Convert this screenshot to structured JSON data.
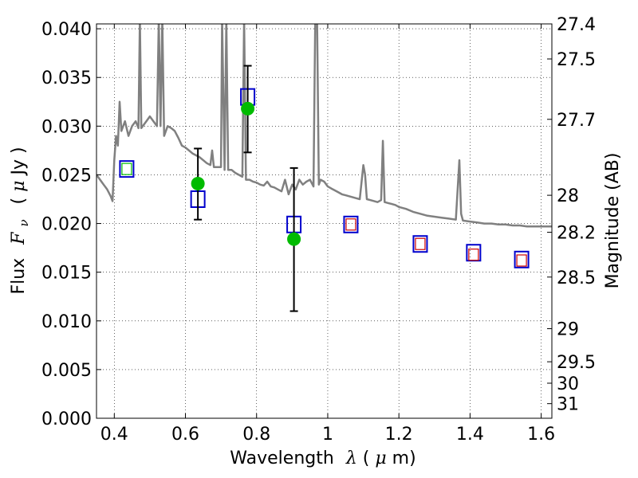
{
  "chart_data": {
    "type": "scatter",
    "xlabel": "Wavelength",
    "xlabel_symbol": "λ",
    "xlabel_unit_open": " (",
    "xlabel_unit_mu": "μ",
    "xlabel_unit_close": "m)",
    "ylabel": "Flux",
    "ylabel_symbol_main": "F",
    "ylabel_symbol_sub": "ν",
    "ylabel_unit_open": "( ",
    "ylabel_unit_mu": "μ",
    "ylabel_unit_close": "Jy )",
    "y2label": "Magnitude (AB)",
    "xlim": [
      0.35,
      1.63
    ],
    "ylim": [
      0.0,
      0.0405
    ],
    "grid": true,
    "x_ticks": [
      0.4,
      0.6,
      0.8,
      1.0,
      1.2,
      1.4,
      1.6
    ],
    "x_tick_labels": [
      "0.4",
      "0.6",
      "0.8",
      "1",
      "1.2",
      "1.4",
      "1.6"
    ],
    "y_ticks": [
      0.0,
      0.005,
      0.01,
      0.015,
      0.02,
      0.025,
      0.03,
      0.035,
      0.04
    ],
    "y_tick_labels": [
      "0.000",
      "0.005",
      "0.010",
      "0.015",
      "0.020",
      "0.025",
      "0.030",
      "0.035",
      "0.040"
    ],
    "mag_ticks": [
      {
        "label": "27.4",
        "flux": 0.0405
      },
      {
        "label": "27.5",
        "flux": 0.0369
      },
      {
        "label": "27.7",
        "flux": 0.0307
      },
      {
        "label": "28",
        "flux": 0.0229
      },
      {
        "label": "28.2",
        "flux": 0.0191
      },
      {
        "label": "28.5",
        "flux": 0.0145
      },
      {
        "label": "29",
        "flux": 0.0092
      },
      {
        "label": "29.5",
        "flux": 0.0058
      },
      {
        "label": "30",
        "flux": 0.0036
      },
      {
        "label": "31",
        "flux": 0.0015
      }
    ],
    "series": [
      {
        "kind": "line",
        "color": "#808080",
        "points": [
          [
            0.35,
            0.025
          ],
          [
            0.36,
            0.0245
          ],
          [
            0.37,
            0.024
          ],
          [
            0.38,
            0.0235
          ],
          [
            0.39,
            0.0228
          ],
          [
            0.395,
            0.0223
          ],
          [
            0.4,
            0.0265
          ],
          [
            0.405,
            0.029
          ],
          [
            0.41,
            0.028
          ],
          [
            0.415,
            0.0325
          ],
          [
            0.42,
            0.0295
          ],
          [
            0.43,
            0.0305
          ],
          [
            0.44,
            0.029
          ],
          [
            0.45,
            0.03
          ],
          [
            0.46,
            0.0305
          ],
          [
            0.468,
            0.0298
          ],
          [
            0.472,
            0.041
          ],
          [
            0.476,
            0.0298
          ],
          [
            0.49,
            0.0305
          ],
          [
            0.5,
            0.031
          ],
          [
            0.51,
            0.0305
          ],
          [
            0.52,
            0.03
          ],
          [
            0.525,
            0.041
          ],
          [
            0.53,
            0.03
          ],
          [
            0.535,
            0.041
          ],
          [
            0.54,
            0.029
          ],
          [
            0.55,
            0.03
          ],
          [
            0.56,
            0.0298
          ],
          [
            0.57,
            0.0295
          ],
          [
            0.58,
            0.0288
          ],
          [
            0.59,
            0.028
          ],
          [
            0.6,
            0.0278
          ],
          [
            0.61,
            0.0275
          ],
          [
            0.62,
            0.0272
          ],
          [
            0.63,
            0.027
          ],
          [
            0.64,
            0.0268
          ],
          [
            0.65,
            0.0265
          ],
          [
            0.66,
            0.0262
          ],
          [
            0.67,
            0.026
          ],
          [
            0.675,
            0.0275
          ],
          [
            0.68,
            0.0258
          ],
          [
            0.69,
            0.0258
          ],
          [
            0.7,
            0.0258
          ],
          [
            0.703,
            0.041
          ],
          [
            0.71,
            0.0255
          ],
          [
            0.715,
            0.041
          ],
          [
            0.72,
            0.0255
          ],
          [
            0.73,
            0.0255
          ],
          [
            0.74,
            0.0252
          ],
          [
            0.75,
            0.025
          ],
          [
            0.76,
            0.0248
          ],
          [
            0.765,
            0.041
          ],
          [
            0.77,
            0.0245
          ],
          [
            0.78,
            0.0245
          ],
          [
            0.79,
            0.0243
          ],
          [
            0.8,
            0.0242
          ],
          [
            0.81,
            0.024
          ],
          [
            0.82,
            0.0239
          ],
          [
            0.83,
            0.0243
          ],
          [
            0.84,
            0.0238
          ],
          [
            0.85,
            0.0237
          ],
          [
            0.86,
            0.0235
          ],
          [
            0.87,
            0.0233
          ],
          [
            0.88,
            0.0245
          ],
          [
            0.89,
            0.023
          ],
          [
            0.9,
            0.024
          ],
          [
            0.91,
            0.0235
          ],
          [
            0.92,
            0.0245
          ],
          [
            0.93,
            0.024
          ],
          [
            0.94,
            0.0243
          ],
          [
            0.95,
            0.0245
          ],
          [
            0.96,
            0.0238
          ],
          [
            0.965,
            0.041
          ],
          [
            0.97,
            0.041
          ],
          [
            0.975,
            0.024
          ],
          [
            0.98,
            0.0245
          ],
          [
            0.99,
            0.0243
          ],
          [
            1.0,
            0.0238
          ],
          [
            1.01,
            0.0236
          ],
          [
            1.02,
            0.0234
          ],
          [
            1.03,
            0.0232
          ],
          [
            1.04,
            0.023
          ],
          [
            1.05,
            0.0229
          ],
          [
            1.06,
            0.0228
          ],
          [
            1.07,
            0.0227
          ],
          [
            1.08,
            0.0226
          ],
          [
            1.09,
            0.0225
          ],
          [
            1.1,
            0.026
          ],
          [
            1.105,
            0.025
          ],
          [
            1.11,
            0.0225
          ],
          [
            1.12,
            0.0224
          ],
          [
            1.13,
            0.0223
          ],
          [
            1.14,
            0.0222
          ],
          [
            1.15,
            0.0224
          ],
          [
            1.155,
            0.0285
          ],
          [
            1.16,
            0.0222
          ],
          [
            1.17,
            0.0221
          ],
          [
            1.18,
            0.022
          ],
          [
            1.19,
            0.0219
          ],
          [
            1.2,
            0.0217
          ],
          [
            1.22,
            0.0215
          ],
          [
            1.24,
            0.0212
          ],
          [
            1.26,
            0.021
          ],
          [
            1.28,
            0.0208
          ],
          [
            1.3,
            0.0207
          ],
          [
            1.32,
            0.0206
          ],
          [
            1.34,
            0.0205
          ],
          [
            1.36,
            0.0204
          ],
          [
            1.37,
            0.0265
          ],
          [
            1.375,
            0.021
          ],
          [
            1.38,
            0.0203
          ],
          [
            1.4,
            0.0202
          ],
          [
            1.42,
            0.0201
          ],
          [
            1.44,
            0.02
          ],
          [
            1.46,
            0.02
          ],
          [
            1.48,
            0.0199
          ],
          [
            1.5,
            0.0199
          ],
          [
            1.52,
            0.0198
          ],
          [
            1.54,
            0.0198
          ],
          [
            1.56,
            0.0197
          ],
          [
            1.58,
            0.0197
          ],
          [
            1.6,
            0.0197
          ],
          [
            1.63,
            0.0197
          ]
        ]
      },
      {
        "kind": "blue_squares",
        "color": "#0000cc",
        "points": [
          [
            0.435,
            0.0256
          ],
          [
            0.635,
            0.0225
          ],
          [
            0.775,
            0.033
          ],
          [
            0.905,
            0.0199
          ],
          [
            1.065,
            0.0199
          ],
          [
            1.26,
            0.0179
          ],
          [
            1.41,
            0.017
          ],
          [
            1.545,
            0.0163
          ]
        ]
      },
      {
        "kind": "red_squares",
        "color": "#cc0000",
        "points": [
          [
            1.065,
            0.0199
          ],
          [
            1.26,
            0.0179
          ],
          [
            1.41,
            0.0168
          ],
          [
            1.545,
            0.0162
          ]
        ]
      },
      {
        "kind": "green_points",
        "color": "#00bb00",
        "points": [
          [
            0.435,
            0.0256
          ],
          [
            0.635,
            0.0241
          ],
          [
            0.775,
            0.0318
          ],
          [
            0.905,
            0.0184
          ]
        ]
      },
      {
        "kind": "errorbars",
        "color": "#000000",
        "bars": [
          {
            "x": 0.635,
            "low": 0.0204,
            "high": 0.0277
          },
          {
            "x": 0.775,
            "low": 0.0273,
            "high": 0.0362
          },
          {
            "x": 0.905,
            "low": 0.011,
            "high": 0.0257
          }
        ]
      }
    ]
  }
}
